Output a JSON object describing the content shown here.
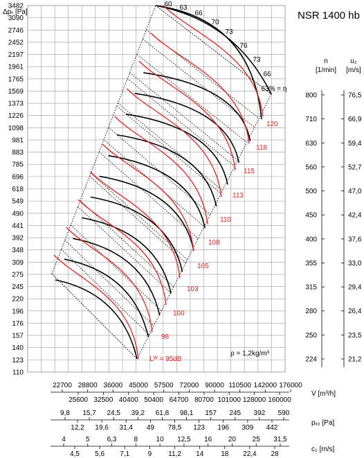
{
  "title": "NSR 1400 hb",
  "density_label": "ρ = 1,2kg/m³",
  "chart_data": {
    "type": "line",
    "title": "NSR 1400 hb",
    "ylabel": "Δpₜ [Pa]",
    "yticks": [
      "110",
      "123",
      "140",
      "157",
      "176",
      "196",
      "220",
      "245",
      "275",
      "309",
      "348",
      "392",
      "441",
      "490",
      "549",
      "618",
      "696",
      "785",
      "883",
      "981",
      "1098",
      "1226",
      "1373",
      "1569",
      "1765",
      "1961",
      "2197",
      "2452",
      "2746",
      "3090",
      "3482"
    ],
    "rpm_axis": {
      "label_top": "n",
      "label_unit": "[1/min]",
      "ticks": [
        "224",
        "250",
        "280",
        "315",
        "355",
        "400",
        "450",
        "500",
        "560",
        "630",
        "710",
        "800"
      ]
    },
    "u2_axis": {
      "label_top": "u₂",
      "label_unit": "[m/s]",
      "ticks": [
        "21,2",
        "23,5",
        "26,4",
        "29,4",
        "33,0",
        "37,6",
        "42,4",
        "47,0",
        "52,7",
        "59,4",
        "66,9",
        "76,5"
      ]
    },
    "flow_axis": {
      "label": "V̇ [m³/h]",
      "upper": [
        "22700",
        "28800",
        "36000",
        "45000",
        "57500",
        "72000",
        "90000",
        "110500",
        "142000",
        "176000"
      ],
      "lower": [
        "25600",
        "32500",
        "40400",
        "50400",
        "64700",
        "80700",
        "101000",
        "128000",
        "160000"
      ]
    },
    "pd2_axis": {
      "label": "pₓ₂ [Pa]",
      "upper": [
        "9,8",
        "15,7",
        "24,5",
        "39,2",
        "61,8",
        "98,1",
        "157",
        "245",
        "392",
        "590"
      ],
      "lower": [
        "12,2",
        "19,6",
        "31,4",
        "49",
        "78,5",
        "123",
        "196",
        "309",
        "442"
      ]
    },
    "c2_axis": {
      "label": "c₂ [m/s]",
      "upper": [
        "4",
        "5",
        "6,3",
        "8",
        "10",
        "12,5",
        "16",
        "20",
        "25",
        "31,5"
      ],
      "lower": [
        "4,5",
        "5,6",
        "7,1",
        "9",
        "11,2",
        "14",
        "18",
        "22,4",
        "28"
      ]
    },
    "efficiency_labels": [
      "60",
      "63",
      "66",
      "70",
      "73",
      "76",
      "73",
      "66",
      "63% = η"
    ],
    "noise_labels": [
      "Lᵂ = 95dB",
      "98",
      "100",
      "103",
      "105",
      "108",
      "110",
      "113",
      "115",
      "118",
      "120"
    ],
    "series": [
      {
        "rpm": 224,
        "u2": 21.2,
        "noise_db": 95
      },
      {
        "rpm": 250,
        "u2": 23.5,
        "noise_db": 98
      },
      {
        "rpm": 280,
        "u2": 26.4,
        "noise_db": 100
      },
      {
        "rpm": 315,
        "u2": 29.4,
        "noise_db": 103
      },
      {
        "rpm": 355,
        "u2": 33.0,
        "noise_db": 105
      },
      {
        "rpm": 400,
        "u2": 37.6,
        "noise_db": 108
      },
      {
        "rpm": 450,
        "u2": 42.4,
        "noise_db": 110
      },
      {
        "rpm": 500,
        "u2": 47.0,
        "noise_db": 113
      },
      {
        "rpm": 560,
        "u2": 52.7,
        "noise_db": 115
      },
      {
        "rpm": 630,
        "u2": 59.4,
        "noise_db": 118
      },
      {
        "rpm": 710,
        "u2": 66.9,
        "noise_db": 120
      },
      {
        "rpm": 800,
        "u2": 76.5
      }
    ]
  }
}
